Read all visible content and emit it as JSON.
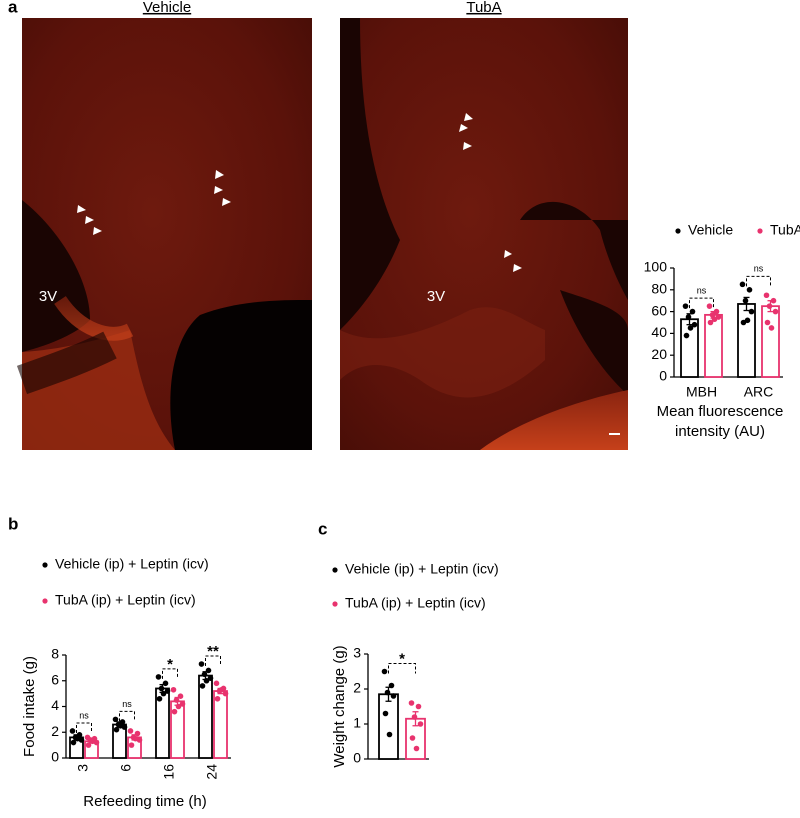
{
  "panels": [
    "a",
    "b",
    "c"
  ],
  "images": [
    {
      "title": "Vehicle",
      "label": "3V"
    },
    {
      "title": "TubA",
      "label": "3V"
    }
  ],
  "chart_data": [
    {
      "type": "bar",
      "categories": [
        "MBH",
        "ARC"
      ],
      "xlabel": [
        "Mean fluorescence",
        "intensity (AU)"
      ],
      "ylim": [
        0,
        100
      ],
      "yticks": [
        0,
        20,
        40,
        60,
        80,
        100
      ],
      "legend": "top",
      "significance": [
        "ns",
        "ns"
      ],
      "series": [
        {
          "name": "Vehicle",
          "color": "#000000",
          "values": [
            53,
            67
          ],
          "errors": [
            5,
            6
          ],
          "points": [
            [
              65,
              60,
              55,
              48,
              38,
              45
            ],
            [
              85,
              80,
              70,
              60,
              50,
              52
            ]
          ]
        },
        {
          "name": "TubA",
          "color": "#e8336e",
          "values": [
            57,
            65
          ],
          "errors": [
            3,
            5
          ],
          "points": [
            [
              65,
              60,
              57,
              55,
              50,
              53
            ],
            [
              75,
              70,
              65,
              60,
              50,
              45
            ]
          ]
        }
      ]
    },
    {
      "type": "bar",
      "categories": [
        "3",
        "6",
        "16",
        "24"
      ],
      "xlabel": [
        "Refeeding time (h)"
      ],
      "ylabel": "Food intake (g)",
      "ylim": [
        0,
        8
      ],
      "yticks": [
        0,
        2,
        4,
        6,
        8
      ],
      "legend": "top",
      "significance": [
        "ns",
        "ns",
        "*",
        "**"
      ],
      "series": [
        {
          "name": "Vehicle (ip) + Leptin (icv)",
          "color": "#000000",
          "values": [
            1.6,
            2.6,
            5.4,
            6.4
          ],
          "errors": [
            0.2,
            0.2,
            0.3,
            0.3
          ],
          "points": [
            [
              2.1,
              1.8,
              1.6,
              1.4,
              1.2,
              1.5
            ],
            [
              3.0,
              2.8,
              2.6,
              2.4,
              2.2,
              2.5
            ],
            [
              6.3,
              5.8,
              5.4,
              5.2,
              4.6,
              5.0
            ],
            [
              7.3,
              6.8,
              6.5,
              6.2,
              5.6,
              6.0
            ]
          ]
        },
        {
          "name": "TubA (ip) + Leptin (icv)",
          "color": "#e8336e",
          "values": [
            1.3,
            1.6,
            4.4,
            5.2
          ],
          "errors": [
            0.1,
            0.2,
            0.3,
            0.2
          ],
          "points": [
            [
              1.6,
              1.5,
              1.4,
              1.2,
              1.0,
              1.3
            ],
            [
              2.1,
              1.9,
              1.6,
              1.4,
              1.0,
              1.5
            ],
            [
              5.3,
              4.8,
              4.5,
              4.2,
              3.6,
              4.0
            ],
            [
              5.8,
              5.4,
              5.2,
              5.0,
              4.6,
              5.3
            ]
          ]
        }
      ]
    },
    {
      "type": "bar",
      "categories": [
        null
      ],
      "ylabel": "Weight change (g)",
      "ylim": [
        0,
        3
      ],
      "yticks": [
        0,
        1,
        2,
        3
      ],
      "legend": "top",
      "significance": [
        "*"
      ],
      "series": [
        {
          "name": "Vehicle (ip) + Leptin (icv)",
          "color": "#000000",
          "values": [
            1.85
          ],
          "errors": [
            0.2
          ],
          "points": [
            [
              2.5,
              2.1,
              1.9,
              1.8,
              1.3,
              0.7
            ]
          ]
        },
        {
          "name": "TubA (ip) + Leptin (icv)",
          "color": "#e8336e",
          "values": [
            1.15
          ],
          "errors": [
            0.2
          ],
          "points": [
            [
              1.6,
              1.5,
              1.2,
              1.0,
              0.6,
              0.3
            ]
          ]
        }
      ]
    }
  ]
}
